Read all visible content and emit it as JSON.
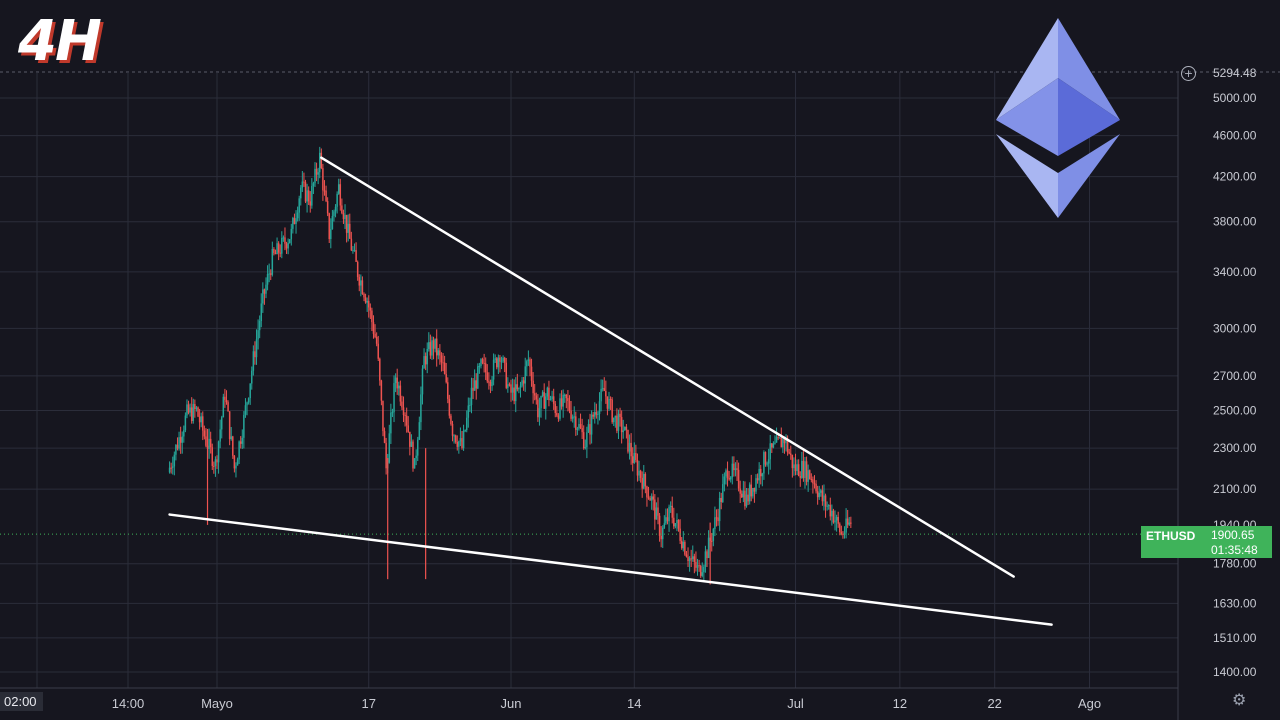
{
  "timeframe_badge": "4H",
  "brand_icon": "ethereum-logo",
  "colors": {
    "up": "#26a69a",
    "down": "#ef5350",
    "background": "#16161f",
    "tag": "#3fb35a",
    "trendline": "#ffffff"
  },
  "price_tag": {
    "symbol": "ETHUSD",
    "value": "1900.65",
    "countdown": "01:35:48"
  },
  "top_price_label": "5294.48",
  "partial_price_label": "1940.00",
  "x_axis_first_label": "02:00",
  "x_axis_partial_label": "1",
  "settings_icon": "gear-icon",
  "chart_data": {
    "type": "candlestick",
    "symbol": "ETHUSD",
    "timeframe": "4H",
    "y_scale": "log",
    "ylim": [
      1350,
      5500
    ],
    "y_ticks": [
      "5000.00",
      "4600.00",
      "4200.00",
      "3800.00",
      "3400.00",
      "3000.00",
      "2700.00",
      "2500.00",
      "2300.00",
      "2100.00",
      "1780.00",
      "1630.00",
      "1510.00",
      "1400.00"
    ],
    "x_ticks": [
      "02:00",
      "14:00",
      "Mayo",
      "17",
      "Jun",
      "14",
      "Jul",
      "12",
      "22",
      "Ago"
    ],
    "price_path": [
      [
        "Apr 26",
        2180
      ],
      [
        "Apr 28",
        2480
      ],
      [
        "Apr 29",
        2500
      ],
      [
        "Apr 30",
        2340
      ],
      [
        "May 1",
        2220
      ],
      [
        "May 2",
        2600
      ],
      [
        "May 3",
        2200
      ],
      [
        "May 4",
        2450
      ],
      [
        "May 5",
        2800
      ],
      [
        "May 6",
        3200
      ],
      [
        "May 7",
        3500
      ],
      [
        "May 8",
        3600
      ],
      [
        "May 9",
        3700
      ],
      [
        "May 10",
        4100
      ],
      [
        "May 11",
        4000
      ],
      [
        "May 12",
        4380
      ],
      [
        "May 13",
        3700
      ],
      [
        "May 14",
        4100
      ],
      [
        "May 15",
        3700
      ],
      [
        "May 16",
        3400
      ],
      [
        "May 17",
        3200
      ],
      [
        "May 18",
        2900
      ],
      [
        "May 19",
        2200
      ],
      [
        "May 20",
        2700
      ],
      [
        "May 21",
        2500
      ],
      [
        "May 22",
        2200
      ],
      [
        "May 23",
        2800
      ],
      [
        "May 24",
        2900
      ],
      [
        "May 25",
        2750
      ],
      [
        "May 26",
        2400
      ],
      [
        "May 27",
        2300
      ],
      [
        "May 28",
        2600
      ],
      [
        "May 29",
        2750
      ],
      [
        "May 30",
        2700
      ],
      [
        "May 31",
        2850
      ],
      [
        "Jun 1",
        2600
      ],
      [
        "Jun 2",
        2600
      ],
      [
        "Jun 3",
        2800
      ],
      [
        "Jun 4",
        2500
      ],
      [
        "Jun 5",
        2600
      ],
      [
        "Jun 6",
        2500
      ],
      [
        "Jun 7",
        2550
      ],
      [
        "Jun 8",
        2450
      ],
      [
        "Jun 9",
        2330
      ],
      [
        "Jun 10",
        2500
      ],
      [
        "Jun 11",
        2610
      ],
      [
        "Jun 12",
        2460
      ],
      [
        "Jun 13",
        2400
      ],
      [
        "Jun 14",
        2250
      ],
      [
        "Jun 15",
        2150
      ],
      [
        "Jun 16",
        2050
      ],
      [
        "Jun 17",
        1900
      ],
      [
        "Jun 18",
        2000
      ],
      [
        "Jun 19",
        1900
      ],
      [
        "Jun 20",
        1800
      ],
      [
        "Jun 21",
        1750
      ],
      [
        "Jun 22",
        1850
      ],
      [
        "Jun 23",
        2000
      ],
      [
        "Jun 24",
        2200
      ],
      [
        "Jun 25",
        2150
      ],
      [
        "Jun 26",
        2050
      ],
      [
        "Jun 27",
        2150
      ],
      [
        "Jun 28",
        2250
      ],
      [
        "Jun 29",
        2300
      ],
      [
        "Jun 30",
        2350
      ],
      [
        "Jul 1",
        2200
      ],
      [
        "Jul 2",
        2200
      ],
      [
        "Jul 3",
        2150
      ],
      [
        "Jul 4",
        2050
      ],
      [
        "Jul 5",
        2000
      ],
      [
        "Jul 6",
        1900
      ],
      [
        "Jul 7",
        1950
      ]
    ],
    "annotations": [
      {
        "type": "trendline",
        "label": "resistance",
        "from": [
          "May 12",
          4380
        ],
        "to": [
          "Jul 24",
          1730
        ]
      },
      {
        "type": "trendline",
        "label": "support",
        "from": [
          "Apr 26",
          1985
        ],
        "to": [
          "Jul 28",
          1555
        ]
      }
    ]
  }
}
